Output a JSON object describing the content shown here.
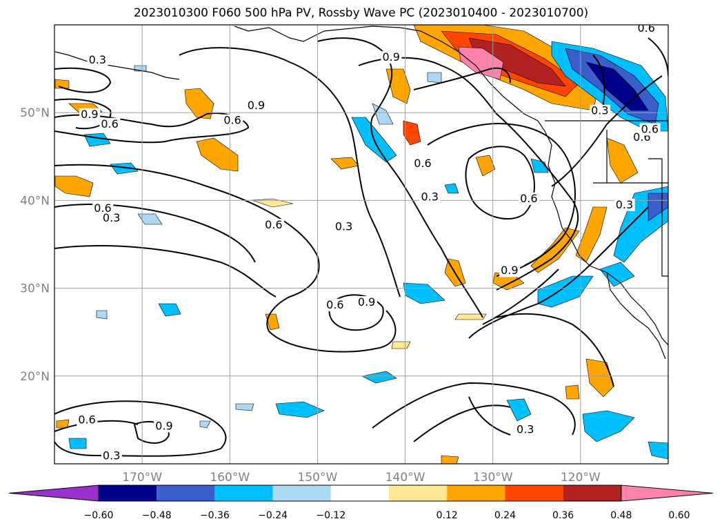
{
  "title": "2023010300 F060 500 hPa PV, Rossby Wave PC (2023010400 - 2023010700)",
  "map": {
    "lon_range": [
      -180,
      -110
    ],
    "lat_range": [
      10,
      60
    ],
    "lat_ticks": [
      {
        "value": 50,
        "label": "50°N"
      },
      {
        "value": 40,
        "label": "40°N"
      },
      {
        "value": 30,
        "label": "30°N"
      },
      {
        "value": 20,
        "label": "20°N"
      }
    ],
    "lon_ticks": [
      {
        "value": -170,
        "label": "170°W"
      },
      {
        "value": -160,
        "label": "160°W"
      },
      {
        "value": -150,
        "label": "150°W"
      },
      {
        "value": -140,
        "label": "140°W"
      },
      {
        "value": -130,
        "label": "130°W"
      },
      {
        "value": -120,
        "label": "120°W"
      }
    ],
    "grid": true,
    "contour_labels": [
      {
        "text": "0.3",
        "lon": -176.1,
        "lat": 55.6
      },
      {
        "text": "0.9",
        "lon": -177.0,
        "lat": 49.4
      },
      {
        "text": "0.6",
        "lon": -174.7,
        "lat": 48.3
      },
      {
        "text": "0.9",
        "lon": -158.0,
        "lat": 50.4
      },
      {
        "text": "0.6",
        "lon": -160.7,
        "lat": 48.7
      },
      {
        "text": "0.6",
        "lon": -175.5,
        "lat": 38.7
      },
      {
        "text": "0.3",
        "lon": -174.5,
        "lat": 37.6
      },
      {
        "text": "0.6",
        "lon": -156.0,
        "lat": 36.8
      },
      {
        "text": "0.3",
        "lon": -148.0,
        "lat": 36.6
      },
      {
        "text": "0.9",
        "lon": -142.6,
        "lat": 55.9
      },
      {
        "text": "0.6",
        "lon": -139.0,
        "lat": 43.8
      },
      {
        "text": "0.3",
        "lon": -138.2,
        "lat": 40.0
      },
      {
        "text": "0.6",
        "lon": -126.9,
        "lat": 39.8
      },
      {
        "text": "0.3",
        "lon": -118.8,
        "lat": 49.8
      },
      {
        "text": "0.6",
        "lon": -114.0,
        "lat": 46.8
      },
      {
        "text": "0.3",
        "lon": -116.0,
        "lat": 39.1
      },
      {
        "text": "0.6",
        "lon": -113.5,
        "lat": 59.2
      },
      {
        "text": "0.6",
        "lon": -113.1,
        "lat": 47.7
      },
      {
        "text": "0.9",
        "lon": -129.1,
        "lat": 31.6
      },
      {
        "text": "0.6",
        "lon": -149.0,
        "lat": 27.7
      },
      {
        "text": "0.9",
        "lon": -145.4,
        "lat": 28.0
      },
      {
        "text": "0.3",
        "lon": -127.3,
        "lat": 13.5
      },
      {
        "text": "0.6",
        "lon": -177.3,
        "lat": 14.6
      },
      {
        "text": "0.9",
        "lon": -168.5,
        "lat": 13.9
      },
      {
        "text": "0.3",
        "lon": -174.5,
        "lat": 10.5
      }
    ]
  },
  "colorbar": {
    "labels": [
      "−0.60",
      "−0.48",
      "−0.36",
      "−0.24",
      "−0.12",
      "0.12",
      "0.24",
      "0.36",
      "0.48",
      "0.60"
    ],
    "colors": [
      "#9932cc",
      "#00008b",
      "#3a5fcd",
      "#00bfff",
      "#add8f4",
      "#ffffff",
      "#ffe793",
      "#ffa500",
      "#ff4500",
      "#b22222",
      "#ff82ab"
    ]
  }
}
